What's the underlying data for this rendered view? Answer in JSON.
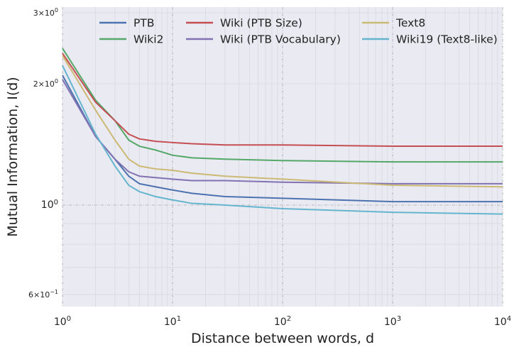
{
  "chart_data": {
    "type": "line",
    "xlabel": "Distance between words, d",
    "ylabel": "Mutual Information, I(d)",
    "xscale": "log",
    "yscale": "log",
    "xlim": [
      1,
      10000
    ],
    "ylim": [
      0.56,
      3.1
    ],
    "grid": true,
    "legend_position": "top",
    "x_tick_labels": [
      {
        "value": 1,
        "base": "10",
        "exp": "0"
      },
      {
        "value": 10,
        "base": "10",
        "exp": "1"
      },
      {
        "value": 100,
        "base": "10",
        "exp": "2"
      },
      {
        "value": 1000,
        "base": "10",
        "exp": "3"
      },
      {
        "value": 10000,
        "base": "10",
        "exp": "4"
      }
    ],
    "y_tick_labels": [
      {
        "value": 0.6,
        "mant": "6",
        "base": "10",
        "exp": "−1",
        "minor": true
      },
      {
        "value": 1,
        "mant": "",
        "base": "10",
        "exp": "0",
        "minor": false
      },
      {
        "value": 2,
        "mant": "2",
        "base": "10",
        "exp": "0",
        "minor": true
      },
      {
        "value": 3,
        "mant": "3",
        "base": "10",
        "exp": "0",
        "minor": true
      }
    ],
    "x": [
      1,
      2,
      3,
      4,
      5,
      7,
      10,
      15,
      30,
      100,
      1000,
      10000
    ],
    "series": [
      {
        "name": "PTB",
        "color": "#4c72b0",
        "values": [
          2.1,
          1.48,
          1.3,
          1.18,
          1.13,
          1.11,
          1.09,
          1.07,
          1.05,
          1.04,
          1.02,
          1.02
        ]
      },
      {
        "name": "Wiki2",
        "color": "#55a868",
        "values": [
          2.45,
          1.82,
          1.62,
          1.45,
          1.4,
          1.37,
          1.33,
          1.31,
          1.3,
          1.29,
          1.28,
          1.28
        ]
      },
      {
        "name": "Wiki (PTB Size)",
        "color": "#c44e52",
        "values": [
          2.38,
          1.8,
          1.62,
          1.5,
          1.46,
          1.44,
          1.43,
          1.42,
          1.41,
          1.41,
          1.4,
          1.4
        ]
      },
      {
        "name": "Wiki (PTB Vocabulary)",
        "color": "#8172b2",
        "values": [
          2.05,
          1.48,
          1.3,
          1.21,
          1.18,
          1.17,
          1.16,
          1.15,
          1.15,
          1.14,
          1.13,
          1.13
        ]
      },
      {
        "name": "Text8",
        "color": "#ccb974",
        "values": [
          2.35,
          1.72,
          1.45,
          1.3,
          1.25,
          1.23,
          1.22,
          1.2,
          1.18,
          1.16,
          1.12,
          1.11
        ]
      },
      {
        "name": "Wiki19 (Text8-like)",
        "color": "#64b5cd",
        "values": [
          2.22,
          1.5,
          1.25,
          1.12,
          1.08,
          1.05,
          1.03,
          1.01,
          1.0,
          0.98,
          0.96,
          0.95
        ]
      }
    ]
  }
}
